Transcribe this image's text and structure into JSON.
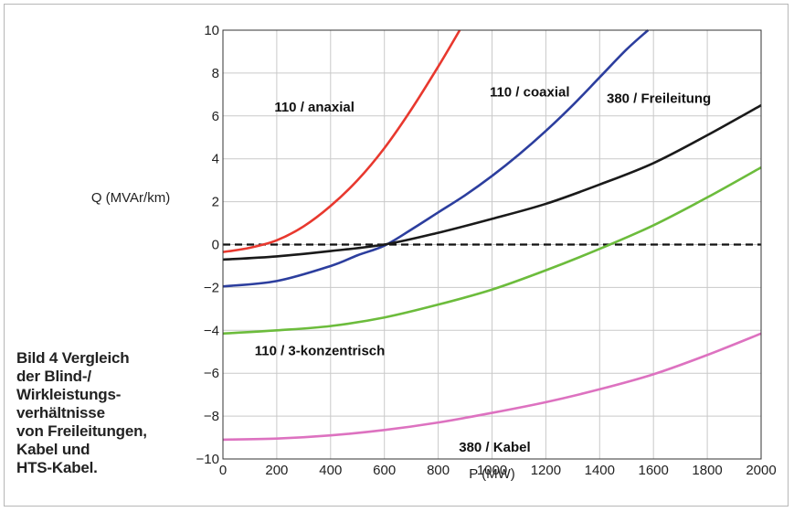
{
  "caption": {
    "lines": [
      "Bild 4   Vergleich",
      "der Blind-/",
      "Wirkleistungs-",
      "verhältnisse",
      "von Freileitungen,",
      "Kabel und",
      "HTS-Kabel."
    ]
  },
  "chart_data": {
    "type": "line",
    "title": "",
    "xlabel": "P (MW)",
    "ylabel": "Q (MVAr/km)",
    "xlim": [
      0,
      2000
    ],
    "ylim": [
      -10,
      10
    ],
    "xticks": [
      0,
      200,
      400,
      600,
      800,
      1000,
      1200,
      1400,
      1600,
      1800,
      2000
    ],
    "yticks": [
      -10,
      -8,
      -6,
      -4,
      -2,
      0,
      2,
      4,
      6,
      8,
      10
    ],
    "grid": true,
    "reference_line": {
      "y": 0,
      "style": "dashed",
      "color": "#111111"
    },
    "series": [
      {
        "name": "110 / anaxial",
        "color": "#e8382e",
        "x": [
          0,
          100,
          200,
          300,
          400,
          500,
          600,
          700,
          800,
          880
        ],
        "y": [
          -0.35,
          -0.15,
          0.2,
          0.85,
          1.8,
          3.0,
          4.5,
          6.3,
          8.3,
          10
        ]
      },
      {
        "name": "110 / coaxial",
        "color": "#2c3e9e",
        "x": [
          0,
          200,
          400,
          500,
          600,
          700,
          800,
          900,
          1000,
          1100,
          1200,
          1300,
          1400,
          1500,
          1580
        ],
        "y": [
          -1.95,
          -1.7,
          -1.0,
          -0.5,
          -0.05,
          0.7,
          1.5,
          2.3,
          3.2,
          4.2,
          5.3,
          6.5,
          7.8,
          9.1,
          10
        ]
      },
      {
        "name": "380 / Freileitung",
        "color": "#1a1a1a",
        "x": [
          0,
          200,
          400,
          600,
          800,
          1000,
          1200,
          1400,
          1600,
          1800,
          2000
        ],
        "y": [
          -0.7,
          -0.55,
          -0.3,
          0.0,
          0.55,
          1.2,
          1.9,
          2.8,
          3.8,
          5.1,
          6.5
        ]
      },
      {
        "name": "110 / 3-konzentrisch",
        "color": "#6cbc3c",
        "x": [
          0,
          200,
          400,
          600,
          800,
          1000,
          1200,
          1400,
          1600,
          1800,
          2000
        ],
        "y": [
          -4.15,
          -4.0,
          -3.8,
          -3.4,
          -2.8,
          -2.1,
          -1.2,
          -0.2,
          0.9,
          2.2,
          3.6
        ]
      },
      {
        "name": "380 / Kabel",
        "color": "#dd72c0",
        "x": [
          0,
          200,
          400,
          600,
          800,
          1000,
          1200,
          1400,
          1600,
          1800,
          2000
        ],
        "y": [
          -9.1,
          -9.05,
          -8.9,
          -8.65,
          -8.3,
          -7.85,
          -7.35,
          -6.75,
          -6.05,
          -5.15,
          -4.15
        ]
      }
    ]
  }
}
